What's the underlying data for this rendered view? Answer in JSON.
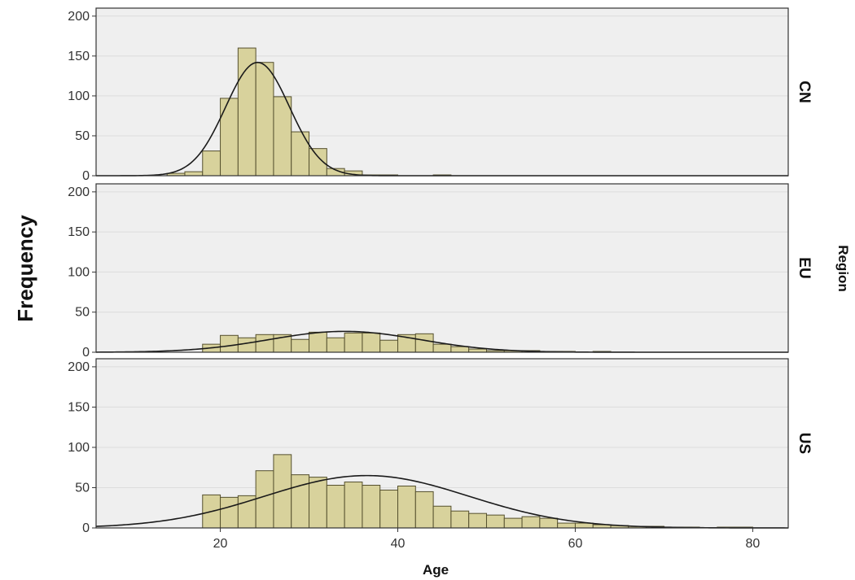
{
  "chart_data": {
    "type": "bar",
    "subtype": "faceted-histogram-with-normal-curve",
    "xlabel": "Age",
    "ylabel": "Frequency",
    "facet_label": "Region",
    "xlim": [
      6,
      84
    ],
    "ylim": [
      0,
      210
    ],
    "x_ticks": [
      20,
      40,
      60,
      80
    ],
    "y_ticks": [
      0,
      50,
      100,
      150,
      200
    ],
    "grid": true,
    "bin_width": 2,
    "colors": {
      "bar_fill": "#d8d29c",
      "bar_stroke": "#55502e",
      "panel_bg": "#efefef",
      "curve": "#1a1a1a"
    },
    "panels": [
      {
        "label": "CN",
        "bins": [
          {
            "x0": 14,
            "count": 3
          },
          {
            "x0": 16,
            "count": 5
          },
          {
            "x0": 18,
            "count": 31
          },
          {
            "x0": 20,
            "count": 97
          },
          {
            "x0": 22,
            "count": 160
          },
          {
            "x0": 24,
            "count": 142
          },
          {
            "x0": 26,
            "count": 99
          },
          {
            "x0": 28,
            "count": 55
          },
          {
            "x0": 30,
            "count": 34
          },
          {
            "x0": 32,
            "count": 9
          },
          {
            "x0": 34,
            "count": 6
          },
          {
            "x0": 36,
            "count": 1
          },
          {
            "x0": 38,
            "count": 1
          },
          {
            "x0": 44,
            "count": 1
          }
        ],
        "normal_curve": {
          "mean": 24.2,
          "sd": 3.6,
          "peak": 142
        }
      },
      {
        "label": "EU",
        "bins": [
          {
            "x0": 18,
            "count": 10
          },
          {
            "x0": 20,
            "count": 21
          },
          {
            "x0": 22,
            "count": 18
          },
          {
            "x0": 24,
            "count": 22
          },
          {
            "x0": 26,
            "count": 22
          },
          {
            "x0": 28,
            "count": 16
          },
          {
            "x0": 30,
            "count": 25
          },
          {
            "x0": 32,
            "count": 18
          },
          {
            "x0": 34,
            "count": 24
          },
          {
            "x0": 36,
            "count": 24
          },
          {
            "x0": 38,
            "count": 15
          },
          {
            "x0": 40,
            "count": 22
          },
          {
            "x0": 42,
            "count": 23
          },
          {
            "x0": 44,
            "count": 10
          },
          {
            "x0": 46,
            "count": 7
          },
          {
            "x0": 48,
            "count": 4
          },
          {
            "x0": 50,
            "count": 2
          },
          {
            "x0": 52,
            "count": 2
          },
          {
            "x0": 54,
            "count": 2
          },
          {
            "x0": 56,
            "count": 1
          },
          {
            "x0": 58,
            "count": 1
          },
          {
            "x0": 62,
            "count": 1
          }
        ],
        "normal_curve": {
          "mean": 34,
          "sd": 8.5,
          "peak": 26
        }
      },
      {
        "label": "US",
        "bins": [
          {
            "x0": 18,
            "count": 41
          },
          {
            "x0": 20,
            "count": 38
          },
          {
            "x0": 22,
            "count": 40
          },
          {
            "x0": 24,
            "count": 71
          },
          {
            "x0": 26,
            "count": 91
          },
          {
            "x0": 28,
            "count": 66
          },
          {
            "x0": 30,
            "count": 63
          },
          {
            "x0": 32,
            "count": 53
          },
          {
            "x0": 34,
            "count": 57
          },
          {
            "x0": 36,
            "count": 53
          },
          {
            "x0": 38,
            "count": 47
          },
          {
            "x0": 40,
            "count": 52
          },
          {
            "x0": 42,
            "count": 45
          },
          {
            "x0": 44,
            "count": 27
          },
          {
            "x0": 46,
            "count": 21
          },
          {
            "x0": 48,
            "count": 18
          },
          {
            "x0": 50,
            "count": 16
          },
          {
            "x0": 52,
            "count": 12
          },
          {
            "x0": 54,
            "count": 14
          },
          {
            "x0": 56,
            "count": 12
          },
          {
            "x0": 58,
            "count": 6
          },
          {
            "x0": 60,
            "count": 6
          },
          {
            "x0": 62,
            "count": 4
          },
          {
            "x0": 64,
            "count": 3
          },
          {
            "x0": 66,
            "count": 2
          },
          {
            "x0": 68,
            "count": 2
          },
          {
            "x0": 70,
            "count": 1
          },
          {
            "x0": 72,
            "count": 1
          },
          {
            "x0": 76,
            "count": 1
          },
          {
            "x0": 78,
            "count": 1
          }
        ],
        "normal_curve": {
          "mean": 36.5,
          "sd": 11.5,
          "peak": 65
        }
      }
    ]
  }
}
